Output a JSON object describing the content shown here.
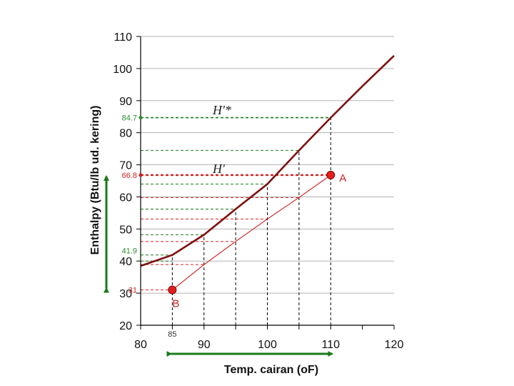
{
  "chart_data": {
    "type": "line",
    "xlabel": "Temp. cairan (oF)",
    "ylabel": "Enthalpy (Btu/lb ud. kering)",
    "xlim": [
      80,
      120
    ],
    "ylim": [
      20,
      110
    ],
    "x_ticks": [
      "80",
      "90",
      "100",
      "110",
      "120"
    ],
    "y_ticks": [
      "20",
      "30",
      "40",
      "50",
      "60",
      "70",
      "80",
      "90",
      "100",
      "110"
    ],
    "grid": "horizontal",
    "series": [
      {
        "name": "H'*",
        "color": "#7f1010",
        "points": [
          [
            80,
            38.5
          ],
          [
            85,
            41.9
          ],
          [
            90,
            48.2
          ],
          [
            95,
            56.2
          ],
          [
            100,
            64.0
          ],
          [
            105,
            74.5
          ],
          [
            110,
            84.7
          ],
          [
            115,
            94.5
          ],
          [
            120,
            104.0
          ]
        ]
      },
      {
        "name": "H'",
        "color": "#cc1a1a",
        "points": [
          [
            85,
            31
          ],
          [
            90,
            38.9
          ],
          [
            95,
            46.1
          ],
          [
            100,
            53.1
          ],
          [
            105,
            59.8
          ],
          [
            110,
            66.8
          ]
        ]
      }
    ],
    "points": [
      {
        "label": "A",
        "x": 110,
        "y": 66.8,
        "color": "#e02020"
      },
      {
        "label": "B",
        "x": 85,
        "y": 31,
        "color": "#e02020"
      }
    ],
    "annotations": {
      "y_markers": [
        {
          "text": "84.7",
          "value": 84.7,
          "color": "#2e8b2e"
        },
        {
          "text": "66.8",
          "value": 66.8,
          "color": "#cc2222"
        },
        {
          "text": "41.9",
          "value": 41.9,
          "color": "#2e8b2e"
        },
        {
          "text": "31",
          "value": 31,
          "color": "#cc2222"
        }
      ],
      "x_marker": {
        "text": "85",
        "value": 85
      },
      "hstar_label": "H'*",
      "h_label": "H'"
    },
    "colors": {
      "green": "#1a7a1a",
      "red": "#cc2222",
      "dark_red": "#7f1010"
    }
  }
}
